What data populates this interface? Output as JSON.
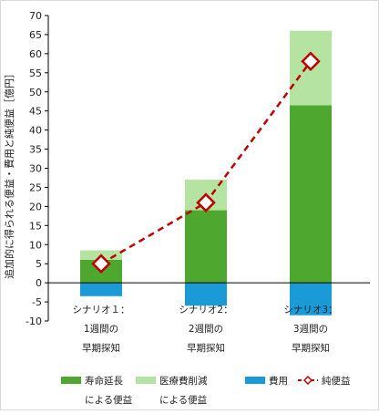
{
  "chart_data": {
    "type": "bar",
    "stacked": true,
    "ylabel": "追加的に得られる便益・費用と純便益［億円］",
    "ylim": [
      -10,
      70
    ],
    "yticks": [
      -10,
      -5,
      0,
      5,
      10,
      15,
      20,
      25,
      30,
      35,
      40,
      45,
      50,
      55,
      60,
      65,
      70
    ],
    "categories": [
      [
        "シナリオ１：",
        "1週間の",
        "早期探知"
      ],
      [
        "シナリオ2：",
        "2週間の",
        "早期探知"
      ],
      [
        "シナリオ3：",
        "3週間の",
        "早期探知"
      ]
    ],
    "series": [
      {
        "name": [
          "寿命延長",
          "による便益"
        ],
        "kind": "bar",
        "color": "#4ea72e",
        "values": [
          6.0,
          19.0,
          46.5
        ]
      },
      {
        "name": [
          "医療費削減",
          "による便益"
        ],
        "kind": "bar",
        "color": "#b5e3a1",
        "values": [
          2.5,
          8.0,
          19.5
        ]
      },
      {
        "name": [
          "費用"
        ],
        "kind": "bar",
        "color": "#1a9ad6",
        "values": [
          -3.5,
          -6.0,
          -8.5
        ]
      },
      {
        "name": [
          "純便益"
        ],
        "kind": "line",
        "color": "#c00000",
        "marker": "diamond",
        "values": [
          5.0,
          21.0,
          58.0
        ]
      }
    ],
    "grid": false,
    "legend_position": "bottom"
  }
}
